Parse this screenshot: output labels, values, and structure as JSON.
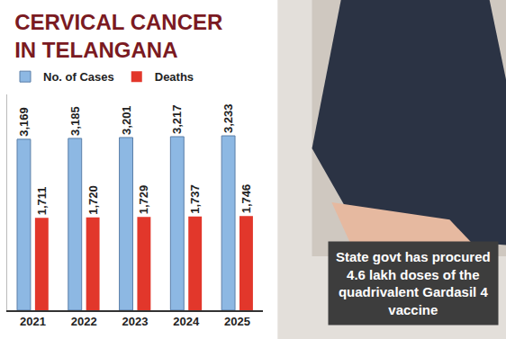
{
  "chart_data": {
    "type": "bar",
    "title": "CERVICAL CANCER IN TELANGANA",
    "categories": [
      "2021",
      "2022",
      "2023",
      "2024",
      "2025"
    ],
    "series": [
      {
        "name": "No. of Cases",
        "color": "#8db8e3",
        "values": [
          3169,
          3185,
          3201,
          3217,
          3233
        ],
        "value_labels": [
          "3,169",
          "3,185",
          "3,201",
          "3,217",
          "3,233"
        ]
      },
      {
        "name": "Deaths",
        "color": "#e2372b",
        "values": [
          1711,
          1720,
          1729,
          1737,
          1746
        ],
        "value_labels": [
          "1,711",
          "1,720",
          "1,729",
          "1,737",
          "1,746"
        ]
      }
    ],
    "ylim": [
      0,
      4000
    ],
    "grid": false,
    "legend": "top-left",
    "data_labels": true,
    "tick_labels": "x",
    "annotations": [
      {
        "text": "State govt has procured 4.6 lakh doses of the quadrivalent Gardasil 4 vaccine"
      }
    ]
  }
}
